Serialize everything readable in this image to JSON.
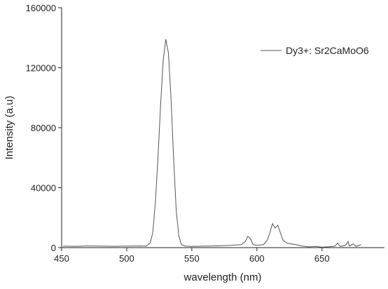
{
  "chart_data": {
    "type": "line",
    "x_label": "wavelength (nm)",
    "y_label": "Intensity (a.u)",
    "x": [
      451,
      460,
      470,
      480,
      490,
      500,
      510,
      515,
      518,
      520,
      522,
      524,
      526,
      528,
      530,
      532,
      534,
      536,
      538,
      540,
      542,
      545,
      550,
      560,
      570,
      580,
      588,
      591,
      593,
      595,
      597,
      600,
      605,
      608,
      610,
      612,
      614,
      616,
      618,
      620,
      623,
      626,
      630,
      635,
      640,
      645,
      650,
      655,
      660,
      662,
      664,
      668,
      670,
      671,
      674,
      676,
      680
    ],
    "series": [
      {
        "name": "Dy3+: Sr2CaMoO6",
        "color": "#555555",
        "values": [
          1000,
          900,
          1100,
          1000,
          900,
          1000,
          1100,
          1000,
          3000,
          10000,
          30000,
          60000,
          95000,
          125000,
          139000,
          130000,
          100000,
          60000,
          25000,
          8000,
          2000,
          1000,
          800,
          1000,
          1200,
          1500,
          2000,
          4000,
          7500,
          6000,
          2000,
          1500,
          2000,
          5000,
          10000,
          16000,
          13000,
          15000,
          10000,
          5000,
          3000,
          2500,
          2000,
          1000,
          500,
          800,
          300,
          500,
          1000,
          3000,
          800,
          1500,
          4000,
          1000,
          2500,
          800,
          2000
        ]
      }
    ],
    "xlim": [
      450,
      698
    ],
    "xticks": [
      450,
      500,
      550,
      600,
      650
    ],
    "ylim": [
      0,
      160000
    ],
    "yticks": [
      0,
      40000,
      80000,
      120000,
      160000
    ],
    "legend": "upper right"
  }
}
